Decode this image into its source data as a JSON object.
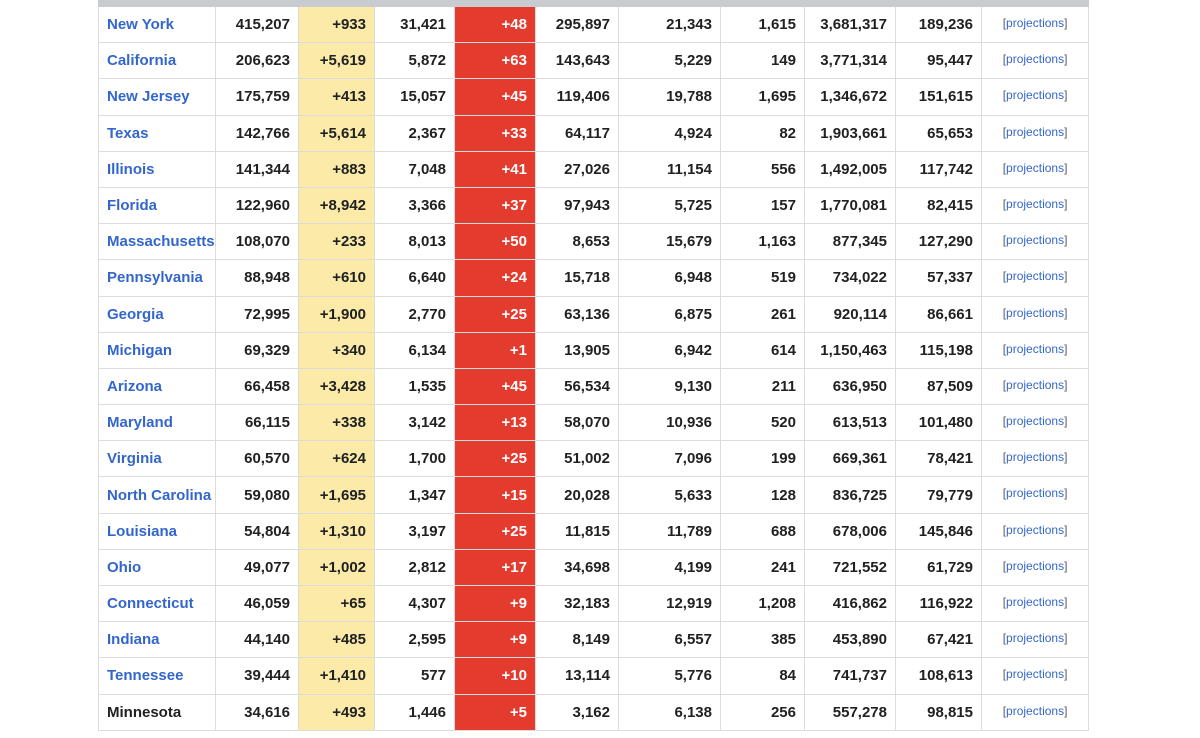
{
  "table": {
    "projections_label": "projections",
    "rows": [
      {
        "state": "New York",
        "linked": true,
        "cases": "415,207",
        "new_cases": "+933",
        "deaths": "31,421",
        "new_deaths": "+48",
        "recovered": "295,897",
        "cases_per_m": "21,343",
        "deaths_per_m": "1,615",
        "tests": "3,681,317",
        "tests_per_m": "189,236"
      },
      {
        "state": "California",
        "linked": true,
        "cases": "206,623",
        "new_cases": "+5,619",
        "deaths": "5,872",
        "new_deaths": "+63",
        "recovered": "143,643",
        "cases_per_m": "5,229",
        "deaths_per_m": "149",
        "tests": "3,771,314",
        "tests_per_m": "95,447"
      },
      {
        "state": "New Jersey",
        "linked": true,
        "cases": "175,759",
        "new_cases": "+413",
        "deaths": "15,057",
        "new_deaths": "+45",
        "recovered": "119,406",
        "cases_per_m": "19,788",
        "deaths_per_m": "1,695",
        "tests": "1,346,672",
        "tests_per_m": "151,615"
      },
      {
        "state": "Texas",
        "linked": true,
        "cases": "142,766",
        "new_cases": "+5,614",
        "deaths": "2,367",
        "new_deaths": "+33",
        "recovered": "64,117",
        "cases_per_m": "4,924",
        "deaths_per_m": "82",
        "tests": "1,903,661",
        "tests_per_m": "65,653"
      },
      {
        "state": "Illinois",
        "linked": true,
        "cases": "141,344",
        "new_cases": "+883",
        "deaths": "7,048",
        "new_deaths": "+41",
        "recovered": "27,026",
        "cases_per_m": "11,154",
        "deaths_per_m": "556",
        "tests": "1,492,005",
        "tests_per_m": "117,742"
      },
      {
        "state": "Florida",
        "linked": true,
        "cases": "122,960",
        "new_cases": "+8,942",
        "deaths": "3,366",
        "new_deaths": "+37",
        "recovered": "97,943",
        "cases_per_m": "5,725",
        "deaths_per_m": "157",
        "tests": "1,770,081",
        "tests_per_m": "82,415"
      },
      {
        "state": "Massachusetts",
        "linked": true,
        "cases": "108,070",
        "new_cases": "+233",
        "deaths": "8,013",
        "new_deaths": "+50",
        "recovered": "8,653",
        "cases_per_m": "15,679",
        "deaths_per_m": "1,163",
        "tests": "877,345",
        "tests_per_m": "127,290"
      },
      {
        "state": "Pennsylvania",
        "linked": true,
        "cases": "88,948",
        "new_cases": "+610",
        "deaths": "6,640",
        "new_deaths": "+24",
        "recovered": "15,718",
        "cases_per_m": "6,948",
        "deaths_per_m": "519",
        "tests": "734,022",
        "tests_per_m": "57,337"
      },
      {
        "state": "Georgia",
        "linked": true,
        "cases": "72,995",
        "new_cases": "+1,900",
        "deaths": "2,770",
        "new_deaths": "+25",
        "recovered": "63,136",
        "cases_per_m": "6,875",
        "deaths_per_m": "261",
        "tests": "920,114",
        "tests_per_m": "86,661"
      },
      {
        "state": "Michigan",
        "linked": true,
        "cases": "69,329",
        "new_cases": "+340",
        "deaths": "6,134",
        "new_deaths": "+1",
        "recovered": "13,905",
        "cases_per_m": "6,942",
        "deaths_per_m": "614",
        "tests": "1,150,463",
        "tests_per_m": "115,198"
      },
      {
        "state": "Arizona",
        "linked": true,
        "cases": "66,458",
        "new_cases": "+3,428",
        "deaths": "1,535",
        "new_deaths": "+45",
        "recovered": "56,534",
        "cases_per_m": "9,130",
        "deaths_per_m": "211",
        "tests": "636,950",
        "tests_per_m": "87,509"
      },
      {
        "state": "Maryland",
        "linked": true,
        "cases": "66,115",
        "new_cases": "+338",
        "deaths": "3,142",
        "new_deaths": "+13",
        "recovered": "58,070",
        "cases_per_m": "10,936",
        "deaths_per_m": "520",
        "tests": "613,513",
        "tests_per_m": "101,480"
      },
      {
        "state": "Virginia",
        "linked": true,
        "cases": "60,570",
        "new_cases": "+624",
        "deaths": "1,700",
        "new_deaths": "+25",
        "recovered": "51,002",
        "cases_per_m": "7,096",
        "deaths_per_m": "199",
        "tests": "669,361",
        "tests_per_m": "78,421"
      },
      {
        "state": "North Carolina",
        "linked": true,
        "cases": "59,080",
        "new_cases": "+1,695",
        "deaths": "1,347",
        "new_deaths": "+15",
        "recovered": "20,028",
        "cases_per_m": "5,633",
        "deaths_per_m": "128",
        "tests": "836,725",
        "tests_per_m": "79,779"
      },
      {
        "state": "Louisiana",
        "linked": true,
        "cases": "54,804",
        "new_cases": "+1,310",
        "deaths": "3,197",
        "new_deaths": "+25",
        "recovered": "11,815",
        "cases_per_m": "11,789",
        "deaths_per_m": "688",
        "tests": "678,006",
        "tests_per_m": "145,846"
      },
      {
        "state": "Ohio",
        "linked": true,
        "cases": "49,077",
        "new_cases": "+1,002",
        "deaths": "2,812",
        "new_deaths": "+17",
        "recovered": "34,698",
        "cases_per_m": "4,199",
        "deaths_per_m": "241",
        "tests": "721,552",
        "tests_per_m": "61,729"
      },
      {
        "state": "Connecticut",
        "linked": true,
        "cases": "46,059",
        "new_cases": "+65",
        "deaths": "4,307",
        "new_deaths": "+9",
        "recovered": "32,183",
        "cases_per_m": "12,919",
        "deaths_per_m": "1,208",
        "tests": "416,862",
        "tests_per_m": "116,922"
      },
      {
        "state": "Indiana",
        "linked": true,
        "cases": "44,140",
        "new_cases": "+485",
        "deaths": "2,595",
        "new_deaths": "+9",
        "recovered": "8,149",
        "cases_per_m": "6,557",
        "deaths_per_m": "385",
        "tests": "453,890",
        "tests_per_m": "67,421"
      },
      {
        "state": "Tennessee",
        "linked": true,
        "cases": "39,444",
        "new_cases": "+1,410",
        "deaths": "577",
        "new_deaths": "+10",
        "recovered": "13,114",
        "cases_per_m": "5,776",
        "deaths_per_m": "84",
        "tests": "741,737",
        "tests_per_m": "108,613"
      },
      {
        "state": "Minnesota",
        "linked": false,
        "cases": "34,616",
        "new_cases": "+493",
        "deaths": "1,446",
        "new_deaths": "+5",
        "recovered": "3,162",
        "cases_per_m": "6,138",
        "deaths_per_m": "256",
        "tests": "557,278",
        "tests_per_m": "98,815"
      }
    ]
  },
  "colors": {
    "link": "#3366cc",
    "new_cases_bg": "#fbeaa8",
    "new_deaths_bg": "#e33b2e"
  }
}
